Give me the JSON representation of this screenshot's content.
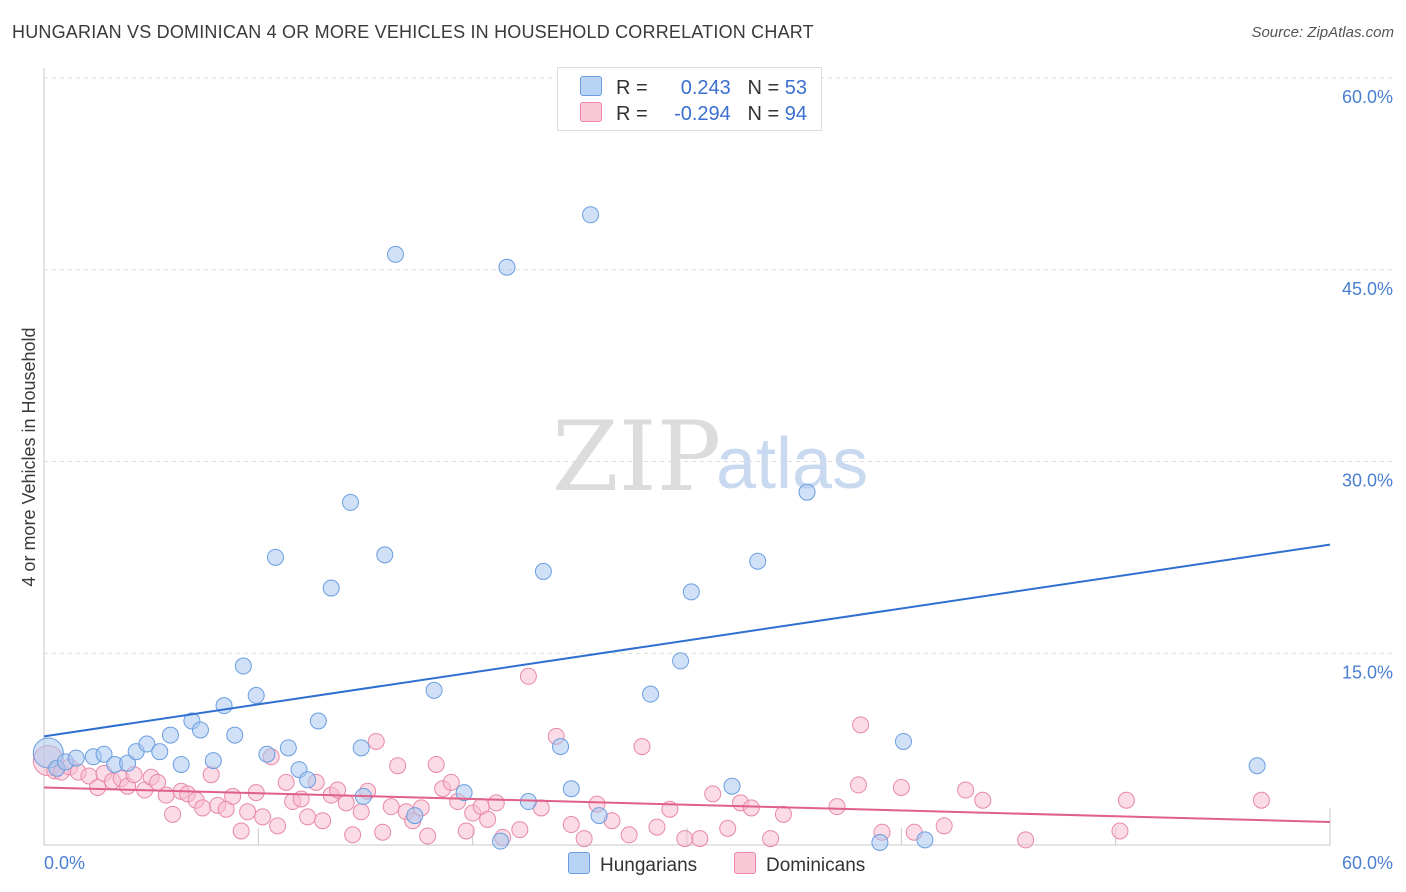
{
  "title": "HUNGARIAN VS DOMINICAN 4 OR MORE VEHICLES IN HOUSEHOLD CORRELATION CHART",
  "source": "Source: ZipAtlas.com",
  "watermark": {
    "zip": "ZIP",
    "atlas": "atlas"
  },
  "legend": {
    "r_label": "R =",
    "n_label": "N =",
    "rows": [
      {
        "r": "0.243",
        "n": "53"
      },
      {
        "r": "-0.294",
        "n": "94"
      }
    ]
  },
  "chart_data": {
    "type": "scatter",
    "title": "HUNGARIAN VS DOMINICAN 4 OR MORE VEHICLES IN HOUSEHOLD CORRELATION CHART",
    "xlabel": "",
    "ylabel": "4 or more Vehicles in Household",
    "xlim": [
      0,
      60
    ],
    "ylim": [
      0,
      60
    ],
    "x_tick_labels": [
      "0.0%",
      "60.0%"
    ],
    "y_ticks": [
      15,
      30,
      45,
      60
    ],
    "y_tick_labels": [
      "15.0%",
      "30.0%",
      "45.0%",
      "60.0%"
    ],
    "grid": true,
    "legend_position": "top-center",
    "series": [
      {
        "name": "Hungarians",
        "color": "#aac8f0",
        "stroke": "#6a9ee0",
        "line_color": "#2f6fd0",
        "r": 0.243,
        "n": 53,
        "trend": [
          [
            0,
            8.5
          ],
          [
            60,
            23.5
          ]
        ],
        "points": [
          [
            0.2,
            7.2
          ],
          [
            0.6,
            6.0
          ],
          [
            1.0,
            6.5
          ],
          [
            1.5,
            6.8
          ],
          [
            2.3,
            6.9
          ],
          [
            2.8,
            7.1
          ],
          [
            3.3,
            6.3
          ],
          [
            3.9,
            6.4
          ],
          [
            4.3,
            7.3
          ],
          [
            4.8,
            7.9
          ],
          [
            5.4,
            7.3
          ],
          [
            5.9,
            8.6
          ],
          [
            6.4,
            6.3
          ],
          [
            6.9,
            9.7
          ],
          [
            7.3,
            9.0
          ],
          [
            7.9,
            6.6
          ],
          [
            8.4,
            10.9
          ],
          [
            8.9,
            8.6
          ],
          [
            9.3,
            14.0
          ],
          [
            9.9,
            11.7
          ],
          [
            10.4,
            7.1
          ],
          [
            10.8,
            22.5
          ],
          [
            11.4,
            7.6
          ],
          [
            11.9,
            5.9
          ],
          [
            12.3,
            5.1
          ],
          [
            12.8,
            9.7
          ],
          [
            13.4,
            20.1
          ],
          [
            14.3,
            26.8
          ],
          [
            14.8,
            7.6
          ],
          [
            14.9,
            3.8
          ],
          [
            15.9,
            22.7
          ],
          [
            16.4,
            46.2
          ],
          [
            17.3,
            2.3
          ],
          [
            18.2,
            12.1
          ],
          [
            19.6,
            4.1
          ],
          [
            21.3,
            0.3
          ],
          [
            21.6,
            45.2
          ],
          [
            22.6,
            3.4
          ],
          [
            23.3,
            21.4
          ],
          [
            24.1,
            7.7
          ],
          [
            24.6,
            4.4
          ],
          [
            25.5,
            49.3
          ],
          [
            25.9,
            2.3
          ],
          [
            28.3,
            11.8
          ],
          [
            29.7,
            14.4
          ],
          [
            30.2,
            19.8
          ],
          [
            32.1,
            4.6
          ],
          [
            33.3,
            22.2
          ],
          [
            35.6,
            27.6
          ],
          [
            39.0,
            0.2
          ],
          [
            40.1,
            8.1
          ],
          [
            41.1,
            0.4
          ],
          [
            56.6,
            6.2
          ]
        ]
      },
      {
        "name": "Dominicans",
        "color": "#f7bdd0",
        "stroke": "#e889a7",
        "line_color": "#e0608a",
        "r": -0.294,
        "n": 94,
        "trend": [
          [
            0,
            4.5
          ],
          [
            60,
            1.8
          ]
        ],
        "points": [
          [
            0.2,
            6.6
          ],
          [
            0.5,
            5.8
          ],
          [
            0.8,
            5.7
          ],
          [
            1.2,
            6.1
          ],
          [
            1.6,
            5.7
          ],
          [
            2.1,
            5.4
          ],
          [
            2.5,
            4.5
          ],
          [
            2.8,
            5.6
          ],
          [
            3.2,
            5.0
          ],
          [
            3.6,
            5.2
          ],
          [
            3.9,
            4.6
          ],
          [
            4.2,
            5.5
          ],
          [
            4.7,
            4.3
          ],
          [
            5.0,
            5.3
          ],
          [
            5.3,
            4.9
          ],
          [
            5.7,
            3.9
          ],
          [
            6.0,
            2.4
          ],
          [
            6.4,
            4.2
          ],
          [
            6.7,
            4.0
          ],
          [
            7.1,
            3.5
          ],
          [
            7.4,
            2.9
          ],
          [
            7.8,
            5.5
          ],
          [
            8.1,
            3.1
          ],
          [
            8.5,
            2.8
          ],
          [
            8.8,
            3.8
          ],
          [
            9.2,
            1.1
          ],
          [
            9.5,
            2.6
          ],
          [
            9.9,
            4.1
          ],
          [
            10.2,
            2.2
          ],
          [
            10.6,
            6.9
          ],
          [
            10.9,
            1.5
          ],
          [
            11.3,
            4.9
          ],
          [
            11.6,
            3.4
          ],
          [
            12.0,
            3.6
          ],
          [
            12.3,
            2.2
          ],
          [
            12.7,
            4.9
          ],
          [
            13.0,
            1.9
          ],
          [
            13.4,
            3.9
          ],
          [
            13.7,
            4.3
          ],
          [
            14.1,
            3.3
          ],
          [
            14.4,
            0.8
          ],
          [
            14.8,
            2.6
          ],
          [
            15.1,
            4.2
          ],
          [
            15.5,
            8.1
          ],
          [
            15.8,
            1.0
          ],
          [
            16.2,
            3.0
          ],
          [
            16.5,
            6.2
          ],
          [
            16.9,
            2.6
          ],
          [
            17.2,
            1.9
          ],
          [
            17.6,
            2.9
          ],
          [
            17.9,
            0.7
          ],
          [
            18.3,
            6.3
          ],
          [
            18.6,
            4.4
          ],
          [
            19.0,
            4.9
          ],
          [
            19.3,
            3.4
          ],
          [
            19.7,
            1.1
          ],
          [
            20.0,
            2.5
          ],
          [
            20.4,
            3.0
          ],
          [
            20.7,
            2.0
          ],
          [
            21.1,
            3.3
          ],
          [
            21.4,
            0.6
          ],
          [
            22.2,
            1.2
          ],
          [
            22.6,
            13.2
          ],
          [
            23.2,
            2.9
          ],
          [
            23.9,
            8.5
          ],
          [
            24.6,
            1.6
          ],
          [
            25.2,
            0.5
          ],
          [
            25.8,
            3.2
          ],
          [
            26.5,
            1.9
          ],
          [
            27.3,
            0.8
          ],
          [
            27.9,
            7.7
          ],
          [
            28.6,
            1.4
          ],
          [
            29.2,
            2.8
          ],
          [
            29.9,
            0.5
          ],
          [
            30.6,
            0.5
          ],
          [
            31.2,
            4.0
          ],
          [
            31.9,
            1.3
          ],
          [
            32.5,
            3.3
          ],
          [
            33.0,
            2.9
          ],
          [
            33.9,
            0.5
          ],
          [
            34.5,
            2.4
          ],
          [
            37.0,
            3.0
          ],
          [
            38.0,
            4.7
          ],
          [
            38.1,
            9.4
          ],
          [
            39.1,
            1.0
          ],
          [
            40.0,
            4.5
          ],
          [
            40.6,
            1.0
          ],
          [
            42.0,
            1.5
          ],
          [
            43.0,
            4.3
          ],
          [
            43.8,
            3.5
          ],
          [
            45.8,
            0.4
          ],
          [
            50.2,
            1.1
          ],
          [
            50.5,
            3.5
          ],
          [
            56.8,
            3.5
          ]
        ]
      }
    ]
  },
  "bottom_legend": [
    "Hungarians",
    "Dominicans"
  ]
}
